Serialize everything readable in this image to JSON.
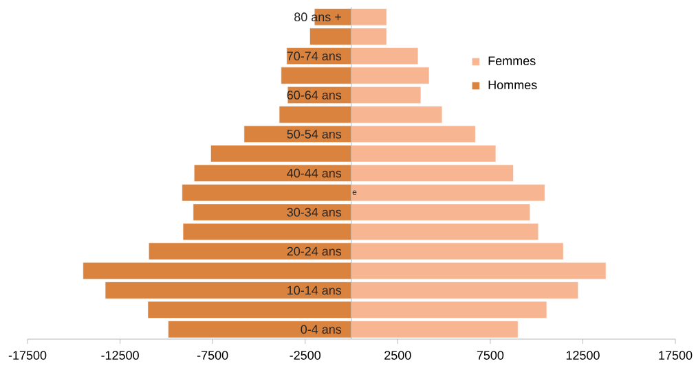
{
  "chart_data": {
    "type": "bar",
    "orientation": "horizontal",
    "stacked": true,
    "categories": [
      "80 ans +",
      null,
      "70-74 ans",
      null,
      "60-64 ans",
      null,
      "50-54 ans",
      null,
      "40-44 ans",
      null,
      "30-34 ans",
      null,
      "20-24 ans",
      null,
      "10-14 ans",
      null,
      "0-4 ans"
    ],
    "series": [
      {
        "name": "Femmes",
        "color": "#f7b592",
        "values": [
          1900,
          1900,
          3600,
          4200,
          3750,
          4900,
          6700,
          7800,
          8750,
          10450,
          9650,
          10100,
          11450,
          13750,
          12250,
          10550,
          9000
        ]
      },
      {
        "name": "Hommes",
        "color": "#d9833f",
        "values": [
          -2000,
          -2250,
          -3500,
          -3800,
          -3450,
          -3900,
          -5800,
          -7600,
          -8500,
          -9150,
          -8550,
          -9100,
          -10950,
          -14500,
          -13300,
          -11000,
          -9900
        ]
      }
    ],
    "xlim": [
      -17500,
      17500
    ],
    "xticks": [
      -17500,
      -12500,
      -7500,
      -2500,
      2500,
      7500,
      12500,
      17500
    ],
    "legend": "top right",
    "annotations": [
      "e"
    ]
  }
}
